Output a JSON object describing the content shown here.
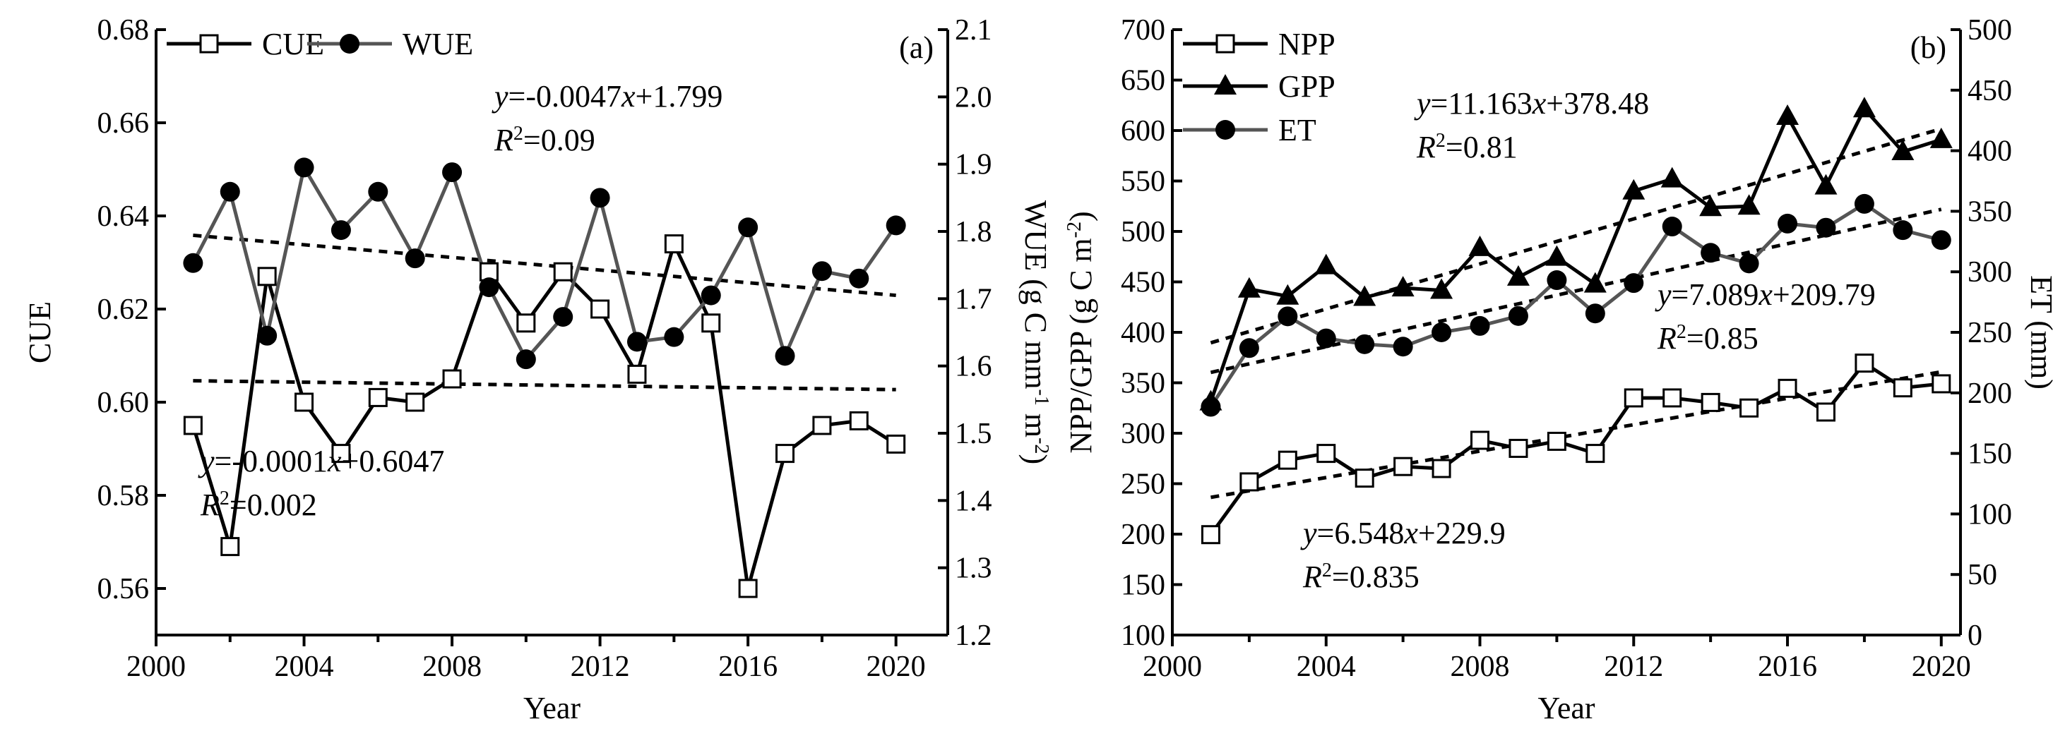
{
  "chart_data": [
    {
      "panel_label": "(a)",
      "type": "line",
      "xlabel": "Year",
      "ylabel": "CUE",
      "y2label": "WUE (g C mm-1 m-2)",
      "y2label_parts": {
        "main": "WUE (g C mm",
        "sup1": "-1",
        "mid": " m",
        "sup2": "-2",
        "end": ")"
      },
      "x": [
        2001,
        2002,
        2003,
        2004,
        2005,
        2006,
        2007,
        2008,
        2009,
        2010,
        2011,
        2012,
        2013,
        2014,
        2015,
        2016,
        2017,
        2018,
        2019,
        2020
      ],
      "xticks": [
        "2000",
        "2004",
        "2008",
        "2012",
        "2016",
        "2020"
      ],
      "ylim": [
        0.55,
        0.68
      ],
      "yticks": [
        "0.56",
        "0.58",
        "0.60",
        "0.62",
        "0.64",
        "0.66",
        "0.68"
      ],
      "y2lim": [
        1.2,
        2.1
      ],
      "y2ticks": [
        "1.2",
        "1.3",
        "1.4",
        "1.5",
        "1.6",
        "1.7",
        "1.8",
        "1.9",
        "2.0",
        "2.1"
      ],
      "legend_position": "top-left",
      "series": [
        {
          "name": "CUE",
          "axis": "left",
          "marker": "open-square",
          "color": "#000000",
          "values": [
            0.595,
            0.569,
            0.627,
            0.6,
            0.589,
            0.601,
            0.6,
            0.605,
            0.628,
            0.617,
            0.628,
            0.62,
            0.606,
            0.634,
            0.617,
            0.56,
            0.589,
            0.595,
            0.596,
            0.591
          ],
          "trend": {
            "slope": -0.0001,
            "intercept": 0.6047,
            "equation": "y=-0.0001x+0.6047",
            "r2": "R2=0.002"
          }
        },
        {
          "name": "WUE",
          "axis": "right",
          "marker": "filled-circle",
          "color": "#555555",
          "values": [
            1.753,
            1.859,
            1.645,
            1.895,
            1.802,
            1.859,
            1.76,
            1.888,
            1.717,
            1.61,
            1.673,
            1.85,
            1.636,
            1.643,
            1.705,
            1.806,
            1.615,
            1.741,
            1.73,
            1.809
          ],
          "trend": {
            "slope": -0.0047,
            "intercept": 1.799,
            "equation": "y=-0.0047x+1.799",
            "r2": "R2=0.09"
          }
        }
      ]
    },
    {
      "panel_label": "(b)",
      "type": "line",
      "xlabel": "Year",
      "ylabel": "NPP/GPP (g C m-2)",
      "ylabel_parts": {
        "main": "NPP/GPP (g C m",
        "sup": "-2",
        "end": ")"
      },
      "y2label": "ET (mm)",
      "x": [
        2001,
        2002,
        2003,
        2004,
        2005,
        2006,
        2007,
        2008,
        2009,
        2010,
        2011,
        2012,
        2013,
        2014,
        2015,
        2016,
        2017,
        2018,
        2019,
        2020
      ],
      "xticks": [
        "2000",
        "2004",
        "2008",
        "2012",
        "2016",
        "2020"
      ],
      "ylim": [
        100,
        700
      ],
      "yticks": [
        "100",
        "150",
        "200",
        "250",
        "300",
        "350",
        "400",
        "450",
        "500",
        "550",
        "600",
        "650",
        "700"
      ],
      "y2lim": [
        0,
        500
      ],
      "y2ticks": [
        "0",
        "50",
        "100",
        "150",
        "200",
        "250",
        "300",
        "350",
        "400",
        "450",
        "500"
      ],
      "legend_position": "top-left",
      "series": [
        {
          "name": "NPP",
          "axis": "left",
          "marker": "open-square",
          "color": "#000000",
          "values": [
            199.5,
            251.8,
            273.3,
            280,
            255.5,
            267,
            265,
            293,
            285,
            292,
            280,
            335,
            335,
            330.5,
            325,
            344.5,
            321,
            369.5,
            345,
            349
          ],
          "trend": {
            "slope": 6.548,
            "intercept": 229.9,
            "equation": "y=6.548x+229.9",
            "r2": "R2=0.835"
          }
        },
        {
          "name": "GPP",
          "axis": "left",
          "marker": "filled-triangle",
          "color": "#000000",
          "values": [
            331,
            442.8,
            435.8,
            466,
            434.6,
            444,
            441.6,
            484,
            454.6,
            474.4,
            447.8,
            540,
            552,
            523.6,
            525,
            614,
            545,
            621.5,
            579,
            591
          ],
          "trend": {
            "slope": 11.163,
            "intercept": 378.48,
            "equation": "y=11.163x+378.48",
            "r2": "R2=0.81"
          }
        },
        {
          "name": "ET",
          "axis": "right",
          "marker": "filled-circle",
          "color": "#555555",
          "values": [
            188.5,
            237,
            263.2,
            245,
            240.2,
            238.2,
            250,
            255.3,
            263.5,
            293.1,
            265.6,
            290.7,
            337.4,
            315.7,
            306.9,
            339.8,
            336.4,
            356.1,
            334.4,
            326.2
          ],
          "trend": {
            "slope": 7.089,
            "intercept": 209.79,
            "equation": "y=7.089x+209.79",
            "r2": "R2=0.85"
          }
        }
      ]
    }
  ]
}
